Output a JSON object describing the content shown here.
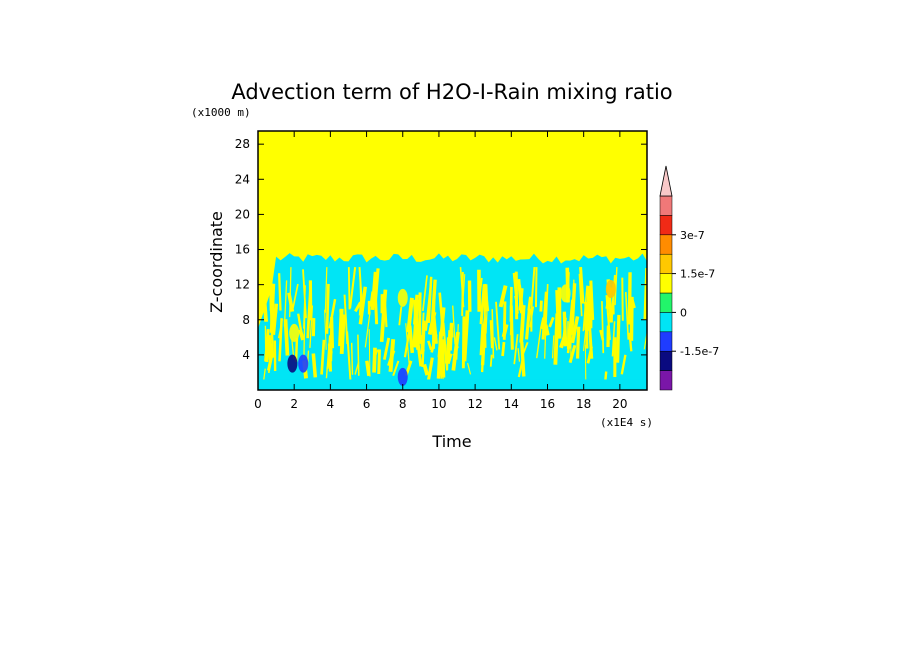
{
  "chart_data": {
    "type": "heatmap",
    "title": "Advection term of H2O-I-Rain mixing ratio",
    "xlabel": "Time",
    "ylabel": "Z-coordinate",
    "x_unit": "(x1E4 s)",
    "y_unit": "(x1000 m)",
    "xlim": [
      0,
      21.5
    ],
    "ylim": [
      0,
      29.5
    ],
    "x_ticks": [
      "0",
      "2",
      "4",
      "6",
      "8",
      "10",
      "12",
      "14",
      "16",
      "18",
      "20"
    ],
    "y_ticks": [
      "4",
      "8",
      "12",
      "16",
      "20",
      "24",
      "28"
    ],
    "cloud_top_km": 15,
    "colorbar": {
      "levels": [
        -2.25e-07,
        -1.5e-07,
        -7.5e-08,
        0,
        7.5e-08,
        1.5e-07,
        2.25e-07,
        3e-07,
        3.75e-07
      ],
      "colors": [
        "#7a16a8",
        "#0a0a80",
        "#1f3cff",
        "#00e5f5",
        "#22f56a",
        "#ffff00",
        "#ffc800",
        "#ff8c00",
        "#f02a16",
        "#f07878",
        "#f8c8c8"
      ],
      "labels": [
        {
          "text": "3e-7",
          "value": 3e-07
        },
        {
          "text": "1.5e-7",
          "value": 1.5e-07
        },
        {
          "text": "0",
          "value": 0
        },
        {
          "text": "-1.5e-7",
          "value": -1.5e-07
        }
      ]
    },
    "features": [
      {
        "x": 1.9,
        "y": 3,
        "value": -1.9e-07
      },
      {
        "x": 2.5,
        "y": 3,
        "value": -9e-08
      },
      {
        "x": 8.0,
        "y": 1.5,
        "value": -9e-08
      },
      {
        "x": 2.0,
        "y": 6.5,
        "value": 1e-07
      },
      {
        "x": 8.0,
        "y": 10.5,
        "value": 1e-07
      },
      {
        "x": 19.5,
        "y": 11.5,
        "value": 1.8e-07
      },
      {
        "x": 17.0,
        "y": 11,
        "value": 9e-08
      }
    ]
  }
}
